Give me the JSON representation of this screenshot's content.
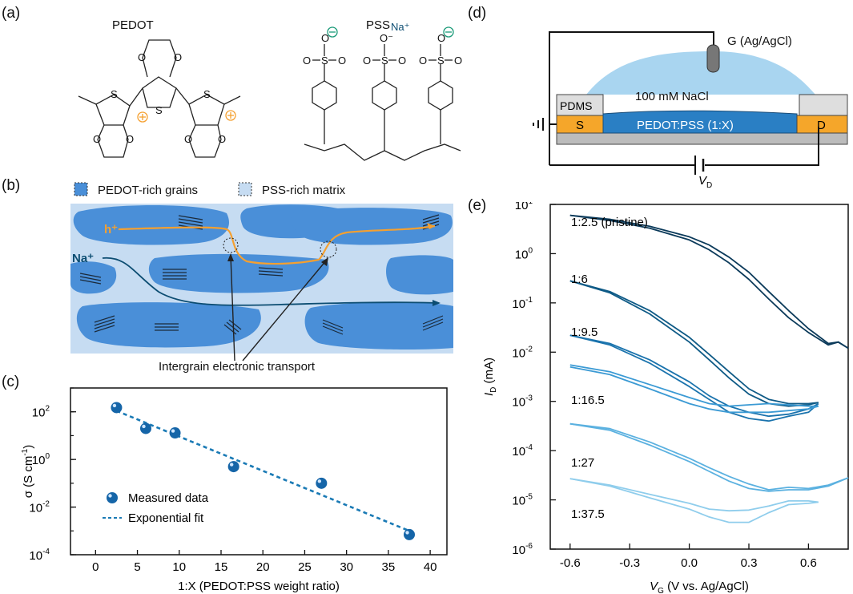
{
  "panels": {
    "a": "(a)",
    "b": "(b)",
    "c": "(c)",
    "d": "(d)",
    "e": "(e)"
  },
  "panel_a": {
    "pedot_title": "PEDOT",
    "pss_title": "PSS",
    "na_label": "Na⁺",
    "o_minus": "O⁻",
    "atoms": {
      "S": "S",
      "O": "O"
    }
  },
  "panel_b": {
    "legend": [
      {
        "label": "PEDOT-rich grains",
        "color": "#4a8fd8"
      },
      {
        "label": "PSS-rich matrix",
        "color": "#c6dcf2"
      }
    ],
    "hole_label": "h⁺",
    "sodium_label": "Na⁺",
    "caption": "Intergrain electronic transport",
    "colors": {
      "hole": "#f5a030",
      "sodium": "#0c4d72"
    }
  },
  "panel_d": {
    "gate_label": "G (Ag/AgCl)",
    "electrolyte_label": "100 mM NaCl",
    "pdms_label": "PDMS",
    "source_label": "S",
    "channel_label": "PEDOT:PSS (1:X)",
    "drain_label": "D",
    "vd_main": "V",
    "vd_sub": "D",
    "colors": {
      "electrolyte": "#a9d5f0",
      "channel": "#2a7fc4",
      "contact": "#f5a62a",
      "substrate": "#bcbcbc",
      "pdms": "#dedede"
    }
  },
  "chart_data": [
    {
      "type": "scatter",
      "panel": "c",
      "xlabel": "1:X (PEDOT:PSS weight ratio)",
      "ylabel_main": "σ",
      "ylabel_unit": "(S cm",
      "ylabel_exp": "-1",
      "ylabel_close": ")",
      "y_scale": "log",
      "xlim": [
        -3,
        42
      ],
      "ylim_log10": [
        -4,
        3
      ],
      "xticks": [
        0,
        5,
        10,
        15,
        20,
        25,
        30,
        35,
        40
      ],
      "yticks": [
        {
          "base": "10",
          "exp": "-4",
          "value": -4
        },
        {
          "base": "10",
          "exp": "-2",
          "value": -2
        },
        {
          "base": "10",
          "exp": "0",
          "value": 0
        },
        {
          "base": "10",
          "exp": "2",
          "value": 2
        }
      ],
      "series": [
        {
          "name": "Measured data",
          "kind": "points",
          "color": "#1565a8",
          "x": [
            2.5,
            6,
            9.5,
            16.5,
            27,
            37.5
          ],
          "y": [
            150,
            20,
            13,
            0.5,
            0.1,
            0.0007
          ]
        },
        {
          "name": "Exponential fit",
          "kind": "dashed-line",
          "color": "#1a7ab5",
          "x": [
            2.5,
            37.5
          ],
          "y": [
            110,
            0.001
          ]
        }
      ],
      "legend_position": "bottom-left"
    },
    {
      "type": "line",
      "panel": "e",
      "xlabel_main": "V",
      "xlabel_sub": "G",
      "xlabel_rest": " (V vs. Ag/AgCl)",
      "ylabel_main": "I",
      "ylabel_sub": "D",
      "ylabel_rest": " (mA)",
      "y_scale": "log",
      "xlim": [
        -0.7,
        0.8
      ],
      "ylim_log10": [
        -6,
        1
      ],
      "xticks": [
        "-0.6",
        "-0.3",
        "0.0",
        "0.3",
        "0.6"
      ],
      "xtick_values": [
        -0.6,
        -0.3,
        0.0,
        0.3,
        0.6
      ],
      "yticks": [
        {
          "base": "10",
          "exp": "1",
          "value": 1
        },
        {
          "base": "10",
          "exp": "0",
          "value": 0
        },
        {
          "base": "10",
          "exp": "-1",
          "value": -1
        },
        {
          "base": "10",
          "exp": "-2",
          "value": -2
        },
        {
          "base": "10",
          "exp": "-3",
          "value": -3
        },
        {
          "base": "10",
          "exp": "-4",
          "value": -4
        },
        {
          "base": "10",
          "exp": "-5",
          "value": -5
        },
        {
          "base": "10",
          "exp": "-6",
          "value": -6
        }
      ],
      "series": [
        {
          "name": "1:2.5 (pristine)",
          "color": "#0b3a5a",
          "x": [
            -0.6,
            -0.4,
            -0.2,
            0.0,
            0.1,
            0.2,
            0.3,
            0.4,
            0.5,
            0.6,
            0.7,
            0.75,
            0.8
          ],
          "fwd": [
            6,
            5,
            3.6,
            2.2,
            1.5,
            0.85,
            0.42,
            0.17,
            0.07,
            0.03,
            0.015,
            0.016,
            0.012
          ],
          "rev": [
            6,
            4.7,
            3.3,
            1.9,
            1.2,
            0.65,
            0.3,
            0.12,
            0.05,
            0.025,
            0.014,
            0.016,
            0.012
          ]
        },
        {
          "name": "1:6",
          "color": "#0e5a86",
          "x": [
            -0.6,
            -0.4,
            -0.2,
            0.0,
            0.1,
            0.2,
            0.3,
            0.4,
            0.5,
            0.6,
            0.65
          ],
          "fwd": [
            0.28,
            0.17,
            0.07,
            0.02,
            0.009,
            0.004,
            0.0018,
            0.0011,
            0.0009,
            0.0009,
            0.00095
          ],
          "rev": [
            0.28,
            0.16,
            0.06,
            0.016,
            0.007,
            0.003,
            0.0014,
            0.0009,
            0.0008,
            0.00085,
            0.00095
          ]
        },
        {
          "name": "1:9.5",
          "color": "#1a73ad",
          "x": [
            -0.6,
            -0.4,
            -0.2,
            0.0,
            0.1,
            0.2,
            0.3,
            0.4,
            0.5,
            0.6,
            0.65
          ],
          "fwd": [
            0.022,
            0.015,
            0.007,
            0.0025,
            0.0013,
            0.0008,
            0.0006,
            0.0005,
            0.00055,
            0.0007,
            0.0009
          ],
          "rev": [
            0.022,
            0.014,
            0.006,
            0.002,
            0.0011,
            0.0006,
            0.00045,
            0.0004,
            0.0005,
            0.0006,
            0.0009
          ]
        },
        {
          "name": "1:16.5",
          "color": "#3b9ad4",
          "x": [
            -0.6,
            -0.4,
            -0.2,
            0.0,
            0.1,
            0.2,
            0.3,
            0.4,
            0.5,
            0.6,
            0.65
          ],
          "fwd": [
            0.0055,
            0.004,
            0.0022,
            0.0012,
            0.0009,
            0.0008,
            0.00085,
            0.0009,
            0.00085,
            0.0008,
            0.0008
          ],
          "rev": [
            0.005,
            0.0035,
            0.0018,
            0.0009,
            0.0007,
            0.0006,
            0.0006,
            0.0006,
            0.00065,
            0.0007,
            0.0008
          ]
        },
        {
          "name": "1:27",
          "color": "#5bb1e0",
          "x": [
            -0.6,
            -0.4,
            -0.2,
            0.0,
            0.1,
            0.2,
            0.3,
            0.4,
            0.5,
            0.6,
            0.7,
            0.8
          ],
          "fwd": [
            0.00035,
            0.00028,
            0.00015,
            7e-05,
            4.5e-05,
            3e-05,
            2.1e-05,
            1.6e-05,
            1.8e-05,
            1.7e-05,
            2e-05,
            2.8e-05
          ],
          "rev": [
            0.00035,
            0.00026,
            0.00013,
            6e-05,
            3.8e-05,
            2.4e-05,
            1.7e-05,
            1.5e-05,
            1.6e-05,
            1.6e-05,
            1.9e-05,
            2.8e-05
          ]
        },
        {
          "name": "1:37.5",
          "color": "#8fcdec",
          "x": [
            -0.6,
            -0.4,
            -0.2,
            0.0,
            0.1,
            0.2,
            0.3,
            0.4,
            0.5,
            0.6,
            0.65
          ],
          "fwd": [
            2.7e-05,
            2e-05,
            1.3e-05,
            8.5e-06,
            6.5e-06,
            6e-06,
            6.2e-06,
            7.5e-06,
            9.5e-06,
            9.5e-06,
            9e-06
          ],
          "rev": [
            2.7e-05,
            1.9e-05,
            1.1e-05,
            6.5e-06,
            4.5e-06,
            3.5e-06,
            3.5e-06,
            5.5e-06,
            8e-06,
            8.5e-06,
            9e-06
          ]
        }
      ]
    }
  ]
}
